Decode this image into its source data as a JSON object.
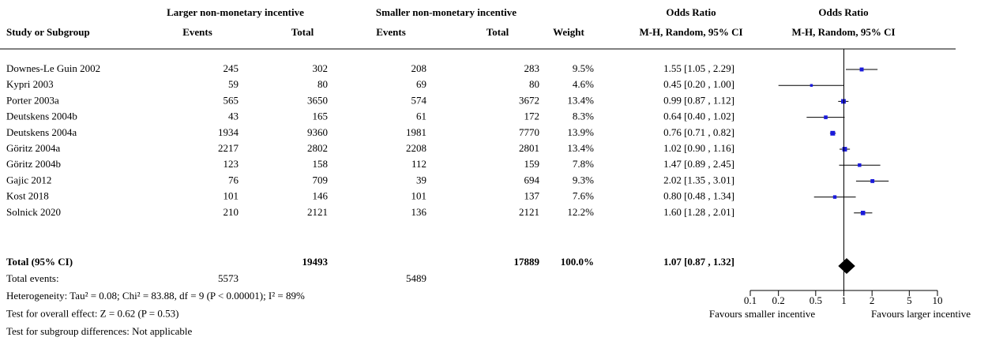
{
  "header": {
    "group1": "Larger non-monetary incentive",
    "group2": "Smaller non-monetary incentive",
    "or_title": "Odds Ratio",
    "plot_title": "Odds Ratio",
    "study": "Study or Subgroup",
    "events1": "Events",
    "total1": "Total",
    "events2": "Events",
    "total2": "Total",
    "weight": "Weight",
    "method": "M-H, Random, 95% CI",
    "plot_method": "M-H, Random, 95% CI"
  },
  "studies": [
    {
      "name": "Downes-Le Guin 2002",
      "events1": 245,
      "total1": 302,
      "events2": 208,
      "total2": 283,
      "weight": 9.5,
      "weight_label": "9.5%",
      "or": 1.55,
      "lo": 1.05,
      "hi": 2.29,
      "ci_label": "1.55 [1.05 , 2.29]"
    },
    {
      "name": "Kypri 2003",
      "events1": 59,
      "total1": 80,
      "events2": 69,
      "total2": 80,
      "weight": 4.6,
      "weight_label": "4.6%",
      "or": 0.45,
      "lo": 0.2,
      "hi": 1.0,
      "ci_label": "0.45 [0.20 , 1.00]"
    },
    {
      "name": "Porter 2003a",
      "events1": 565,
      "total1": 3650,
      "events2": 574,
      "total2": 3672,
      "weight": 13.4,
      "weight_label": "13.4%",
      "or": 0.99,
      "lo": 0.87,
      "hi": 1.12,
      "ci_label": "0.99 [0.87 , 1.12]"
    },
    {
      "name": "Deutskens 2004b",
      "events1": 43,
      "total1": 165,
      "events2": 61,
      "total2": 172,
      "weight": 8.3,
      "weight_label": "8.3%",
      "or": 0.64,
      "lo": 0.4,
      "hi": 1.02,
      "ci_label": "0.64 [0.40 , 1.02]"
    },
    {
      "name": "Deutskens 2004a",
      "events1": 1934,
      "total1": 9360,
      "events2": 1981,
      "total2": 7770,
      "weight": 13.9,
      "weight_label": "13.9%",
      "or": 0.76,
      "lo": 0.71,
      "hi": 0.82,
      "ci_label": "0.76 [0.71 , 0.82]"
    },
    {
      "name": "Göritz 2004a",
      "events1": 2217,
      "total1": 2802,
      "events2": 2208,
      "total2": 2801,
      "weight": 13.4,
      "weight_label": "13.4%",
      "or": 1.02,
      "lo": 0.9,
      "hi": 1.16,
      "ci_label": "1.02 [0.90 , 1.16]"
    },
    {
      "name": "Göritz 2004b",
      "events1": 123,
      "total1": 158,
      "events2": 112,
      "total2": 159,
      "weight": 7.8,
      "weight_label": "7.8%",
      "or": 1.47,
      "lo": 0.89,
      "hi": 2.45,
      "ci_label": "1.47 [0.89 , 2.45]"
    },
    {
      "name": "Gajic 2012",
      "events1": 76,
      "total1": 709,
      "events2": 39,
      "total2": 694,
      "weight": 9.3,
      "weight_label": "9.3%",
      "or": 2.02,
      "lo": 1.35,
      "hi": 3.01,
      "ci_label": "2.02 [1.35 , 3.01]"
    },
    {
      "name": "Kost 2018",
      "events1": 101,
      "total1": 146,
      "events2": 101,
      "total2": 137,
      "weight": 7.6,
      "weight_label": "7.6%",
      "or": 0.8,
      "lo": 0.48,
      "hi": 1.34,
      "ci_label": "0.80 [0.48 , 1.34]"
    },
    {
      "name": "Solnick 2020",
      "events1": 210,
      "total1": 2121,
      "events2": 136,
      "total2": 2121,
      "weight": 12.2,
      "weight_label": "12.2%",
      "or": 1.6,
      "lo": 1.28,
      "hi": 2.01,
      "ci_label": "1.60 [1.28 , 2.01]"
    }
  ],
  "total": {
    "name": "Total (95% CI)",
    "total1": 19493,
    "total2": 17889,
    "weight_label": "100.0%",
    "or": 1.07,
    "lo": 0.87,
    "hi": 1.32,
    "ci_label": "1.07 [0.87 , 1.32]"
  },
  "total_events": {
    "label": "Total events:",
    "events1": 5573,
    "events2": 5489
  },
  "footnotes": [
    "Heterogeneity: Tau² = 0.08; Chi² = 83.88, df = 9 (P < 0.00001); I² = 89%",
    "Test for overall effect: Z = 0.62 (P = 0.53)",
    "Test for subgroup differences: Not applicable"
  ],
  "plot": {
    "scale": "log",
    "xlim": [
      0.1,
      10
    ],
    "xticks": [
      0.1,
      0.2,
      0.5,
      1,
      2,
      5,
      10
    ],
    "null_line": 1,
    "color": "#1a1adb",
    "left_label": "Favours smaller incentive",
    "right_label": "Favours larger incentive"
  }
}
